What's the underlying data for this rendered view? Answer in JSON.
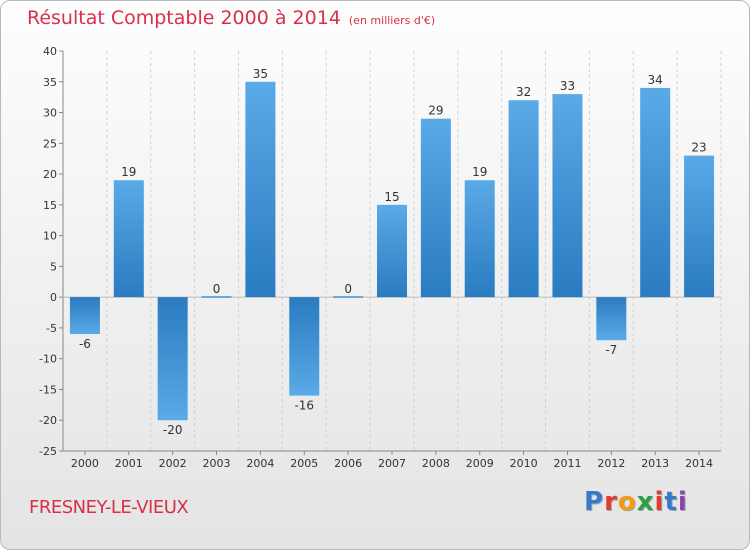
{
  "title": "Résultat Comptable 2000 à 2014",
  "title_unit": "(en milliers d'€)",
  "commune": "FRESNEY-LE-VIEUX",
  "logo": {
    "text": "Proxiti",
    "colors": [
      "#3a78c9",
      "#e23b2e",
      "#f39c12",
      "#2f9e44",
      "#e23b2e",
      "#3a78c9",
      "#8e44ad"
    ]
  },
  "colors": {
    "bar_light": "#5aaae8",
    "bar_dark": "#2a7bc0",
    "title": "#d9304a"
  },
  "chart_data": {
    "type": "bar",
    "categories": [
      "2000",
      "2001",
      "2002",
      "2003",
      "2004",
      "2005",
      "2006",
      "2007",
      "2008",
      "2009",
      "2010",
      "2011",
      "2012",
      "2013",
      "2014"
    ],
    "values": [
      -6,
      19,
      -20,
      0,
      35,
      -16,
      0,
      15,
      29,
      19,
      32,
      33,
      -7,
      34,
      23
    ],
    "ylim": [
      -25,
      40
    ],
    "yticks": [
      -25,
      -20,
      -15,
      -10,
      -5,
      0,
      5,
      10,
      15,
      20,
      25,
      30,
      35,
      40
    ],
    "grid": "vertical-dashed",
    "title": "Résultat Comptable 2000 à 2014"
  }
}
